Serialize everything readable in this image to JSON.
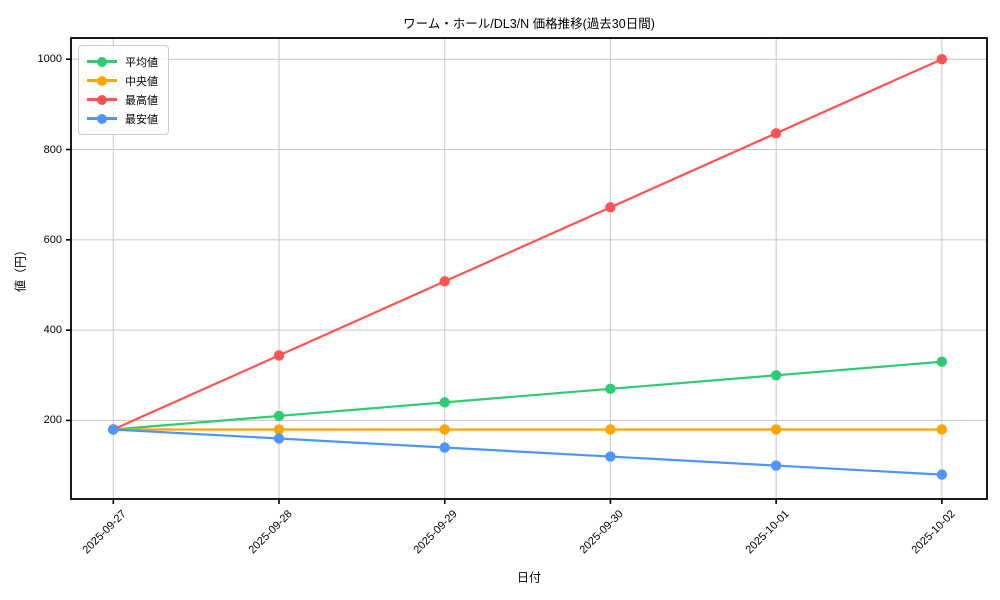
{
  "title": "ワーム・ホール/DL3/N 価格推移(過去30日間)",
  "chart_data": {
    "type": "line",
    "title": "ワーム・ホール/DL3/N 価格推移(過去30日間)",
    "xlabel": "日付",
    "ylabel": "値（円）",
    "categories": [
      "2025-09-27",
      "2025-09-28",
      "2025-09-29",
      "2025-09-30",
      "2025-10-01",
      "2025-10-02"
    ],
    "series": [
      {
        "name": "平均値",
        "color": "#2ecc71",
        "values": [
          180,
          210,
          240,
          270,
          300,
          330
        ]
      },
      {
        "name": "中央値",
        "color": "#ffa500",
        "values": [
          180,
          180,
          180,
          180,
          180,
          180
        ]
      },
      {
        "name": "最高値",
        "color": "#ff5252",
        "values": [
          180,
          344,
          508,
          672,
          836,
          1000
        ]
      },
      {
        "name": "最安値",
        "color": "#4d94ff",
        "values": [
          180,
          160,
          140,
          120,
          100,
          80
        ]
      }
    ],
    "yticks": [
      200,
      400,
      600,
      800,
      1000
    ],
    "ylim": [
      26,
      1047
    ],
    "grid": true,
    "legend_position": "upper left",
    "marker": "circle",
    "x_tick_rotation": 45,
    "grid_color": "#c6c6c6",
    "spine_color": "#000000"
  }
}
